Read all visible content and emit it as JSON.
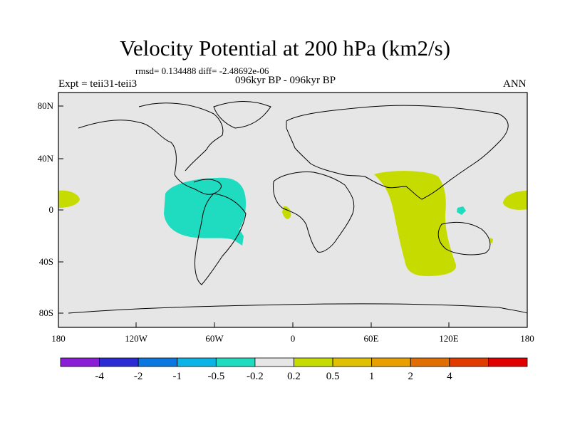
{
  "title": "Velocity Potential at 200 hPa (km2/s)",
  "stats": "rmsd= 0.134488 diff= -2.48692e-06",
  "experiment": "Expt = teii31-teii3",
  "periods": "096kyr BP - 096kyr BP",
  "season": "ANN",
  "colors": {
    "ocean_land_neutral": "#e6e6e6",
    "negative_small": "#1fdcc0",
    "positive_small": "#c6dc00"
  },
  "map": {
    "lat_labels": [
      "80N",
      "40N",
      "0",
      "40S",
      "80S"
    ],
    "lon_labels": [
      "180",
      "120W",
      "60W",
      "0",
      "60E",
      "120E",
      "180"
    ]
  },
  "colorbar": {
    "colors": [
      "#8a1ed6",
      "#2b2bd6",
      "#0a78e0",
      "#0ab4e6",
      "#1fdcc0",
      "#e6e6e6",
      "#c6dc00",
      "#e0c000",
      "#e8a000",
      "#e06e00",
      "#e03c00",
      "#e00000"
    ],
    "labels": [
      "-4",
      "-2",
      "-1",
      "-0.5",
      "-0.2",
      "0.2",
      "0.5",
      "1",
      "2",
      "4"
    ]
  }
}
